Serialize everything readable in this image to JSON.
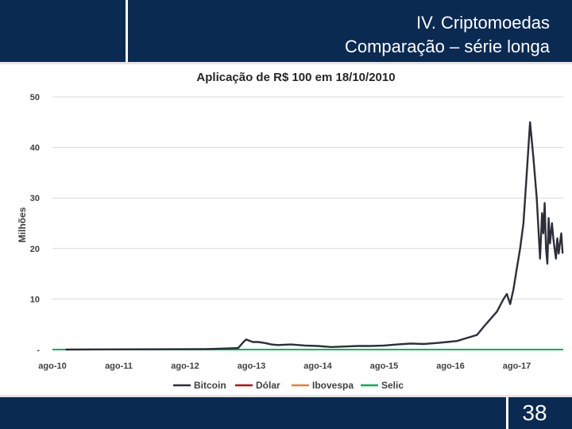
{
  "header": {
    "title_line1": "IV. Criptomoedas",
    "title_line2": "Comparação – série longa"
  },
  "footer": {
    "page_number": "38"
  },
  "colors": {
    "brand_navy": "#0b2a52",
    "bitcoin": "#2b2f3a",
    "dolar": "#c00000",
    "ibovespa": "#ed7d31",
    "selic": "#00b050",
    "gridline": "#d9d9d9"
  },
  "chart_data": {
    "type": "line",
    "title": "Aplicação de R$ 100 em 18/10/2010",
    "ylabel": "Milhões",
    "xlabel": "",
    "ylim": [
      0,
      50
    ],
    "yticks": [
      0,
      10,
      20,
      30,
      40,
      50
    ],
    "ytick_labels": [
      "-",
      "10",
      "20",
      "30",
      "40",
      "50"
    ],
    "xlim": [
      2010.6,
      2018.3
    ],
    "xticks": [
      2010.6,
      2011.6,
      2012.6,
      2013.6,
      2014.6,
      2015.6,
      2016.6,
      2017.6
    ],
    "xtick_labels": [
      "ago-10",
      "ago-11",
      "ago-12",
      "ago-13",
      "ago-14",
      "ago-15",
      "ago-16",
      "ago-17"
    ],
    "grid": "horizontal",
    "legend_position": "bottom",
    "series": [
      {
        "name": "Bitcoin",
        "x": [
          2010.8,
          2012.9,
          2013.2,
          2013.4,
          2013.48,
          2013.52,
          2013.56,
          2013.62,
          2013.7,
          2013.8,
          2013.9,
          2014.0,
          2014.2,
          2014.4,
          2014.6,
          2014.8,
          2015.0,
          2015.2,
          2015.4,
          2015.6,
          2015.8,
          2015.9,
          2016.0,
          2016.2,
          2016.4,
          2016.55,
          2016.7,
          2016.8,
          2016.9,
          2017.0,
          2017.1,
          2017.2,
          2017.3,
          2017.4,
          2017.45,
          2017.5,
          2017.55,
          2017.6,
          2017.65,
          2017.7,
          2017.75,
          2017.8,
          2017.85,
          2017.9,
          2017.95,
          2017.98,
          2018.0,
          2018.02,
          2018.04,
          2018.06,
          2018.08,
          2018.1,
          2018.13,
          2018.15,
          2018.17,
          2018.19,
          2018.21,
          2018.23,
          2018.25,
          2018.27,
          2018.29
        ],
        "values": [
          0.0,
          0.1,
          0.2,
          0.3,
          1.5,
          2.0,
          1.8,
          1.5,
          1.5,
          1.3,
          1.0,
          0.9,
          1.0,
          0.8,
          0.7,
          0.5,
          0.6,
          0.7,
          0.7,
          0.8,
          1.0,
          1.1,
          1.2,
          1.1,
          1.3,
          1.5,
          1.7,
          2.1,
          2.5,
          2.9,
          4.5,
          6.0,
          7.5,
          10.0,
          11.0,
          9.0,
          12.0,
          16.0,
          20.0,
          25.0,
          35.0,
          45.0,
          38.0,
          30.0,
          18.0,
          27.0,
          23.0,
          29.0,
          20.0,
          17.0,
          26.0,
          21.0,
          25.0,
          22.0,
          20.0,
          18.0,
          22.0,
          19.0,
          21.0,
          23.0,
          19.0
        ]
      },
      {
        "name": "Dólar",
        "x": [
          2010.6,
          2018.3
        ],
        "values": [
          0.0,
          0.0
        ]
      },
      {
        "name": "Ibovespa",
        "x": [
          2010.6,
          2011.1
        ],
        "values": [
          0.0,
          0.0
        ]
      },
      {
        "name": "Selic",
        "x": [
          2010.6,
          2018.3
        ],
        "values": [
          0.0,
          0.0
        ]
      }
    ]
  }
}
